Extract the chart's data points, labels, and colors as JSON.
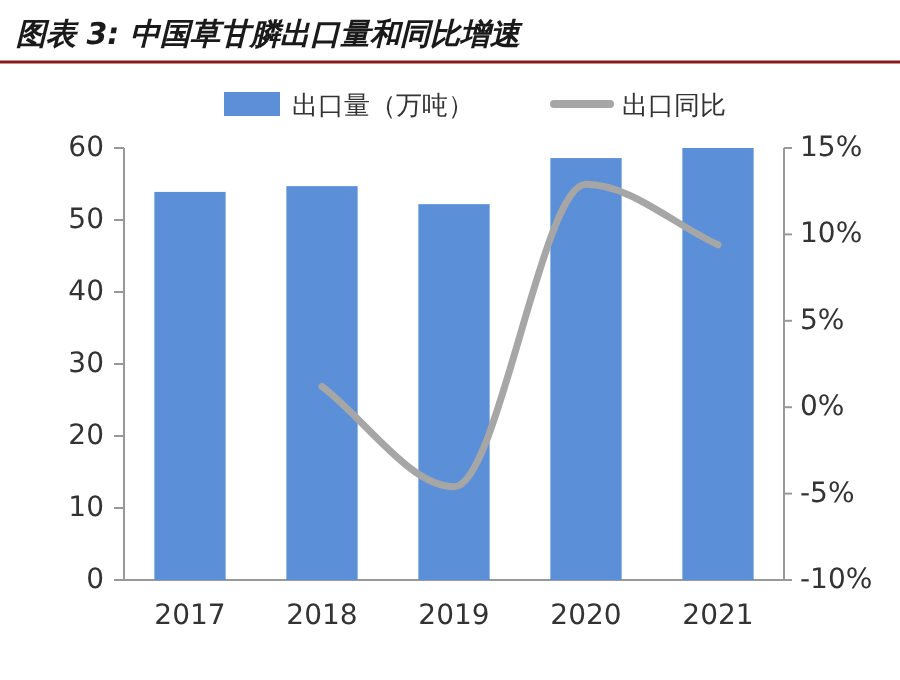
{
  "chart_data": {
    "type": "bar",
    "title": "图表 3:  中国草甘膦出口量和同比增速",
    "categories": [
      "2017",
      "2018",
      "2019",
      "2020",
      "2021"
    ],
    "series": [
      {
        "name": "出口量（万吨）",
        "color": "#5b8fd8",
        "values": [
          53.9,
          54.7,
          52.2,
          58.6,
          60.0
        ]
      },
      {
        "name": "出口同比",
        "type": "line",
        "axis": "y2",
        "color": "#a6a6a6",
        "values": [
          null,
          1.2,
          -4.6,
          12.9,
          9.4
        ]
      }
    ],
    "ylim": [
      0,
      60
    ],
    "yticks": [
      0,
      10,
      20,
      30,
      40,
      50,
      60
    ],
    "y2lim": [
      -10,
      15
    ],
    "y2ticks": [
      {
        "value": -10,
        "label": "-10%"
      },
      {
        "value": -5,
        "label": "-5%"
      },
      {
        "value": 0,
        "label": "0%"
      },
      {
        "value": 5,
        "label": "5%"
      },
      {
        "value": 10,
        "label": "10%"
      },
      {
        "value": 15,
        "label": "15%"
      }
    ],
    "legend": "top",
    "grid": false
  }
}
